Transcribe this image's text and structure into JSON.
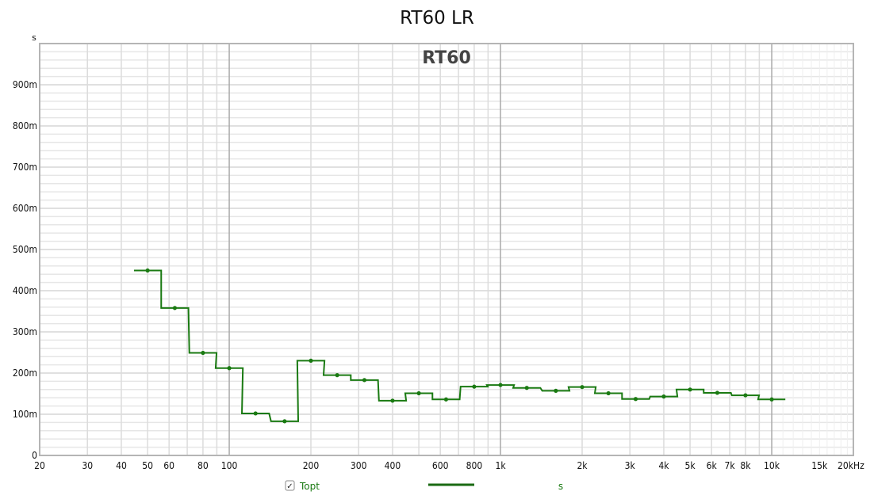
{
  "chart_data": {
    "type": "line",
    "title": "RT60 LR",
    "plot_label": "RT60",
    "ylabel": "s",
    "xscale": "log",
    "xlim": [
      20,
      20000
    ],
    "ylim": [
      0,
      1.0
    ],
    "grid": true,
    "x_ticks": [
      {
        "v": 20,
        "l": "20"
      },
      {
        "v": 30,
        "l": "30"
      },
      {
        "v": 40,
        "l": "40"
      },
      {
        "v": 50,
        "l": "50"
      },
      {
        "v": 60,
        "l": "60"
      },
      {
        "v": 80,
        "l": "80"
      },
      {
        "v": 100,
        "l": "100"
      },
      {
        "v": 200,
        "l": "200"
      },
      {
        "v": 300,
        "l": "300"
      },
      {
        "v": 400,
        "l": "400"
      },
      {
        "v": 600,
        "l": "600"
      },
      {
        "v": 800,
        "l": "800"
      },
      {
        "v": 1000,
        "l": "1k"
      },
      {
        "v": 2000,
        "l": "2k"
      },
      {
        "v": 3000,
        "l": "3k"
      },
      {
        "v": 4000,
        "l": "4k"
      },
      {
        "v": 5000,
        "l": "5k"
      },
      {
        "v": 6000,
        "l": "6k"
      },
      {
        "v": 7000,
        "l": "7k"
      },
      {
        "v": 8000,
        "l": "8k"
      },
      {
        "v": 10000,
        "l": "10k"
      },
      {
        "v": 15000,
        "l": "15k",
        "muted": true
      },
      {
        "v": 20000,
        "l": "20kHz"
      }
    ],
    "y_ticks": [
      {
        "v": 0,
        "l": "0"
      },
      {
        "v": 0.1,
        "l": "100m"
      },
      {
        "v": 0.2,
        "l": "200m"
      },
      {
        "v": 0.3,
        "l": "300m"
      },
      {
        "v": 0.4,
        "l": "400m"
      },
      {
        "v": 0.5,
        "l": "500m"
      },
      {
        "v": 0.6,
        "l": "600m"
      },
      {
        "v": 0.7,
        "l": "700m"
      },
      {
        "v": 0.8,
        "l": "800m"
      },
      {
        "v": 0.9,
        "l": "900m"
      }
    ],
    "series": [
      {
        "name": "Topt",
        "unit": "s",
        "color": "#1a7a12",
        "style": "third-octave-steps",
        "x": [
          50,
          63,
          80,
          100,
          125,
          160,
          200,
          250,
          315,
          400,
          500,
          630,
          800,
          1000,
          1250,
          1600,
          2000,
          2500,
          3150,
          4000,
          5000,
          6300,
          8000,
          10000
        ],
        "y": [
          0.449,
          0.358,
          0.249,
          0.212,
          0.102,
          0.083,
          0.23,
          0.195,
          0.183,
          0.133,
          0.151,
          0.136,
          0.167,
          0.171,
          0.164,
          0.157,
          0.166,
          0.151,
          0.137,
          0.143,
          0.16,
          0.152,
          0.146,
          0.136
        ]
      }
    ]
  },
  "legend": {
    "checked": true,
    "check_glyph": "✓",
    "label": "Topt",
    "unit": "s"
  }
}
